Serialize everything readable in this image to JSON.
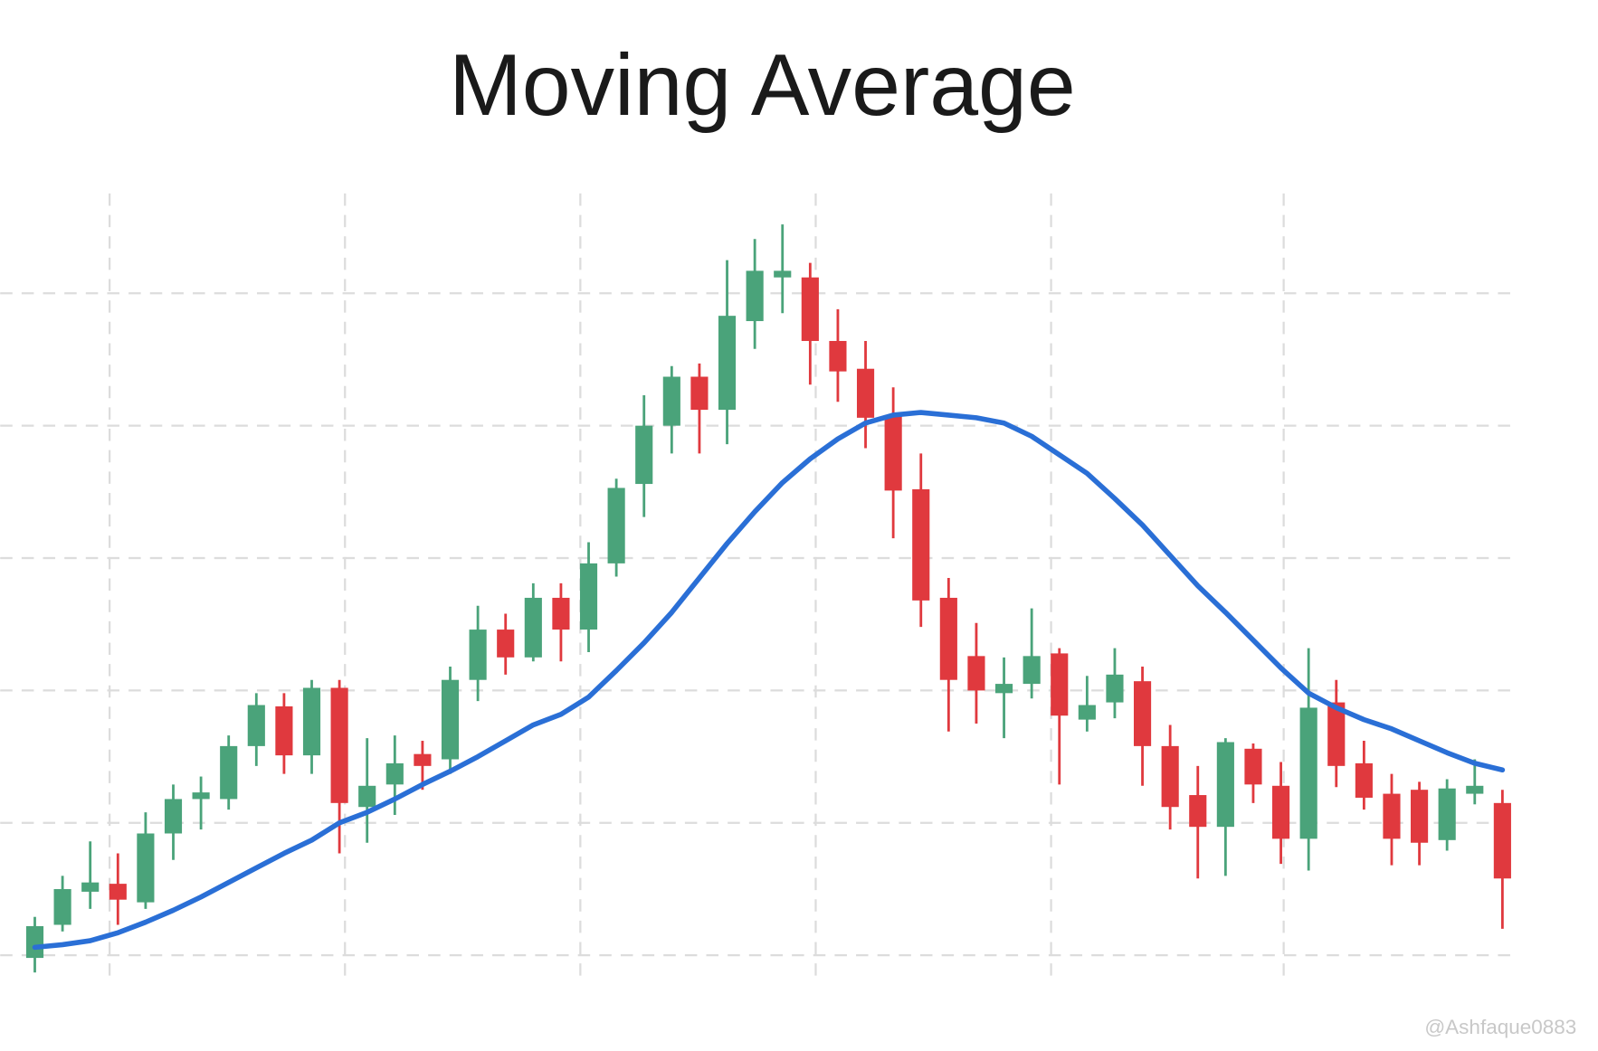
{
  "chart_data": {
    "type": "candlestick",
    "title": "Moving Average",
    "watermark": "@Ashfaque0883",
    "x": [
      0,
      1,
      2,
      3,
      4,
      5,
      6,
      7,
      8,
      9,
      10,
      11,
      12,
      13,
      14,
      15,
      16,
      17,
      18,
      19,
      20,
      21,
      22,
      23,
      24,
      25,
      26,
      27,
      28,
      29,
      30,
      31,
      32,
      33,
      34,
      35,
      36,
      37,
      38,
      39,
      40,
      41,
      42,
      43,
      44,
      45,
      46,
      47,
      48,
      49,
      50,
      51,
      52,
      53
    ],
    "open": [
      -0.02,
      0.23,
      0.48,
      0.54,
      0.4,
      0.92,
      1.18,
      1.18,
      1.58,
      1.88,
      1.51,
      2.02,
      1.12,
      1.29,
      1.52,
      1.48,
      2.08,
      2.46,
      2.25,
      2.7,
      2.46,
      2.96,
      3.56,
      4.0,
      4.37,
      4.12,
      4.79,
      5.12,
      5.12,
      4.64,
      4.43,
      4.08,
      3.52,
      2.7,
      2.26,
      1.98,
      2.05,
      2.28,
      1.78,
      1.91,
      2.07,
      1.58,
      1.21,
      0.97,
      1.56,
      1.28,
      0.88,
      1.91,
      1.45,
      1.22,
      1.25,
      0.87,
      1.22,
      1.15
    ],
    "high": [
      0.29,
      0.6,
      0.86,
      0.77,
      1.08,
      1.29,
      1.35,
      1.66,
      1.98,
      1.98,
      2.08,
      2.08,
      1.64,
      1.66,
      1.62,
      2.18,
      2.64,
      2.58,
      2.81,
      2.81,
      3.12,
      3.6,
      4.23,
      4.45,
      4.47,
      5.25,
      5.41,
      5.52,
      5.23,
      4.88,
      4.64,
      4.29,
      3.79,
      2.85,
      2.51,
      2.25,
      2.62,
      2.32,
      2.11,
      2.32,
      2.18,
      1.74,
      1.43,
      1.64,
      1.6,
      1.46,
      2.32,
      2.08,
      1.62,
      1.37,
      1.31,
      1.33,
      1.48,
      1.25
    ],
    "low": [
      -0.13,
      0.18,
      0.35,
      0.23,
      0.35,
      0.72,
      0.95,
      1.1,
      1.43,
      1.37,
      1.37,
      0.77,
      0.85,
      1.06,
      1.25,
      1.37,
      1.92,
      2.12,
      2.22,
      2.22,
      2.29,
      2.86,
      3.31,
      3.79,
      3.79,
      3.86,
      4.58,
      4.85,
      4.31,
      4.18,
      3.83,
      3.15,
      2.48,
      1.69,
      1.75,
      1.64,
      1.94,
      1.29,
      1.69,
      1.79,
      1.28,
      0.95,
      0.58,
      0.6,
      1.15,
      0.69,
      0.64,
      1.27,
      1.1,
      0.68,
      0.68,
      0.79,
      1.14,
      0.2
    ],
    "close": [
      0.22,
      0.5,
      0.55,
      0.42,
      0.92,
      1.18,
      1.23,
      1.58,
      1.89,
      1.51,
      2.02,
      1.15,
      1.28,
      1.45,
      1.43,
      2.08,
      2.46,
      2.25,
      2.7,
      2.46,
      2.96,
      3.53,
      4.0,
      4.37,
      4.12,
      4.83,
      5.17,
      5.17,
      4.64,
      4.41,
      4.06,
      3.51,
      2.68,
      2.08,
      2.0,
      2.05,
      2.26,
      1.81,
      1.89,
      2.12,
      1.58,
      1.12,
      0.97,
      1.61,
      1.29,
      0.88,
      1.87,
      1.43,
      1.19,
      0.88,
      0.85,
      1.26,
      1.28,
      0.58
    ],
    "up_color": "#4aa37a",
    "down_color": "#e0393e",
    "moving_average": {
      "color": "#2a6fd6",
      "values": [
        0.06,
        0.08,
        0.11,
        0.17,
        0.25,
        0.34,
        0.44,
        0.55,
        0.66,
        0.77,
        0.87,
        1.0,
        1.08,
        1.18,
        1.29,
        1.39,
        1.5,
        1.62,
        1.74,
        1.82,
        1.95,
        2.15,
        2.36,
        2.59,
        2.85,
        3.11,
        3.35,
        3.57,
        3.75,
        3.9,
        4.02,
        4.08,
        4.1,
        4.08,
        4.06,
        4.02,
        3.92,
        3.78,
        3.64,
        3.45,
        3.25,
        3.02,
        2.79,
        2.59,
        2.38,
        2.17,
        1.98,
        1.87,
        1.78,
        1.71,
        1.62,
        1.53,
        1.45,
        1.4
      ]
    },
    "xlim": [
      -1.25,
      53.5
    ],
    "ylim": [
      -0.2,
      5.8
    ],
    "xticks": [
      2.7,
      11.2,
      19.7,
      28.2,
      36.7,
      45.1
    ],
    "yticks": [
      0,
      1,
      2,
      3,
      4,
      5
    ],
    "grid": true
  }
}
